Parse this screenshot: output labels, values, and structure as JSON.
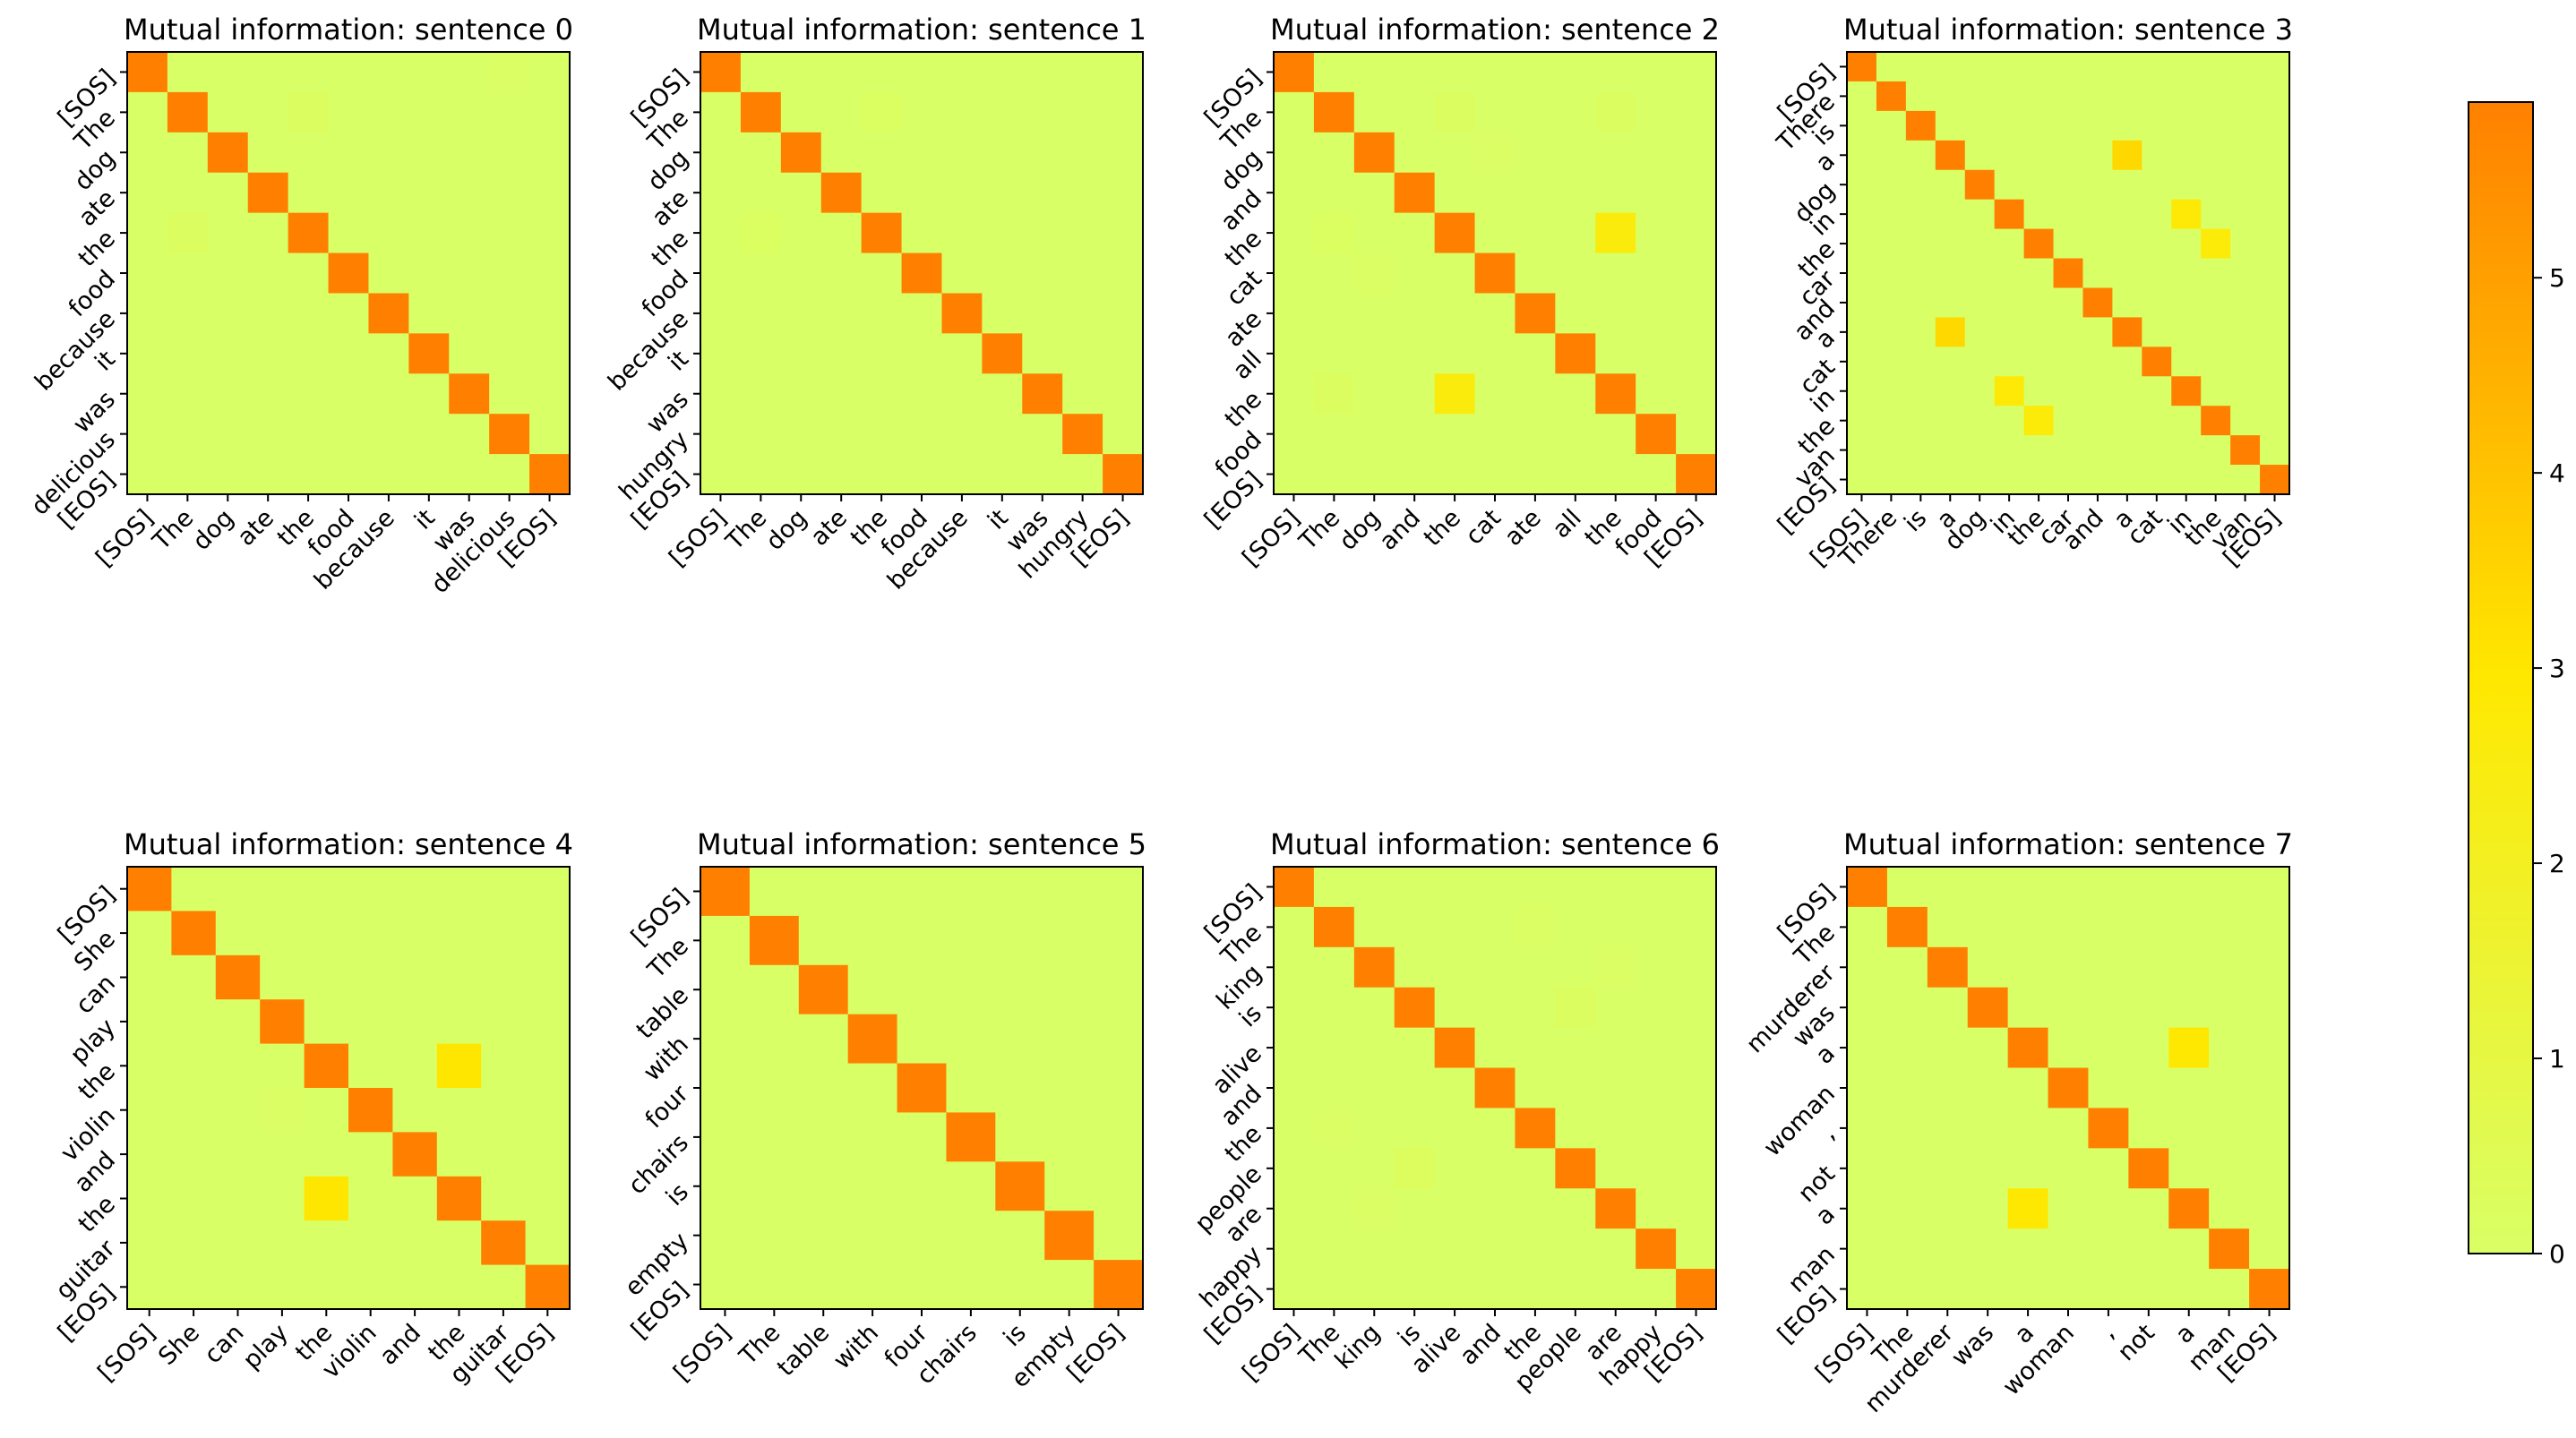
{
  "chart_data": [
    {
      "type": "heatmap",
      "title": "Mutual information: sentence 0",
      "tokens": [
        "[SOS]",
        "The",
        "dog",
        "ate",
        "the",
        "food",
        "because",
        "it",
        "was",
        "delicious",
        "[EOS]"
      ],
      "highlights": [
        [
          1,
          4,
          0.2
        ],
        [
          4,
          1,
          0.2
        ],
        [
          0,
          9,
          0.1
        ]
      ],
      "diagonal_value": 5.9,
      "background_value": 0
    },
    {
      "type": "heatmap",
      "title": "Mutual information: sentence 1",
      "tokens": [
        "[SOS]",
        "The",
        "dog",
        "ate",
        "the",
        "food",
        "because",
        "it",
        "was",
        "hungry",
        "[EOS]"
      ],
      "highlights": [
        [
          1,
          4,
          0.15
        ],
        [
          4,
          1,
          0.15
        ]
      ],
      "diagonal_value": 5.9,
      "background_value": 0
    },
    {
      "type": "heatmap",
      "title": "Mutual information: sentence 2",
      "tokens": [
        "[SOS]",
        "The",
        "dog",
        "and",
        "the",
        "cat",
        "ate",
        "all",
        "the",
        "food",
        "[EOS]"
      ],
      "highlights": [
        [
          4,
          8,
          2.6
        ],
        [
          8,
          4,
          2.6
        ],
        [
          1,
          4,
          0.2
        ],
        [
          4,
          1,
          0.15
        ],
        [
          1,
          8,
          0.2
        ],
        [
          8,
          1,
          0.2
        ],
        [
          2,
          5,
          0.1
        ],
        [
          5,
          2,
          0.1
        ]
      ],
      "diagonal_value": 5.9,
      "background_value": 0
    },
    {
      "type": "heatmap",
      "title": "Mutual information: sentence 3",
      "tokens": [
        "[SOS]",
        "There",
        "is",
        "a",
        "dog",
        "in",
        "the",
        "car",
        "and",
        "a",
        "cat",
        "in",
        "the",
        "van",
        "[EOS]"
      ],
      "highlights": [
        [
          3,
          9,
          3.4
        ],
        [
          9,
          3,
          3.4
        ],
        [
          5,
          11,
          2.8
        ],
        [
          11,
          5,
          2.8
        ],
        [
          6,
          12,
          2.7
        ],
        [
          12,
          6,
          2.7
        ]
      ],
      "diagonal_value": 5.9,
      "background_value": 0
    },
    {
      "type": "heatmap",
      "title": "Mutual information: sentence 4",
      "tokens": [
        "[SOS]",
        "She",
        "can",
        "play",
        "the",
        "violin",
        "and",
        "the",
        "guitar",
        "[EOS]"
      ],
      "highlights": [
        [
          4,
          7,
          3.0
        ],
        [
          7,
          4,
          3.0
        ],
        [
          5,
          3,
          0.1
        ]
      ],
      "diagonal_value": 5.9,
      "background_value": 0
    },
    {
      "type": "heatmap",
      "title": "Mutual information: sentence 5",
      "tokens": [
        "[SOS]",
        "The",
        "table",
        "with",
        "four",
        "chairs",
        "is",
        "empty",
        "[EOS]"
      ],
      "highlights": [],
      "diagonal_value": 5.9,
      "background_value": 0
    },
    {
      "type": "heatmap",
      "title": "Mutual information: sentence 6",
      "tokens": [
        "[SOS]",
        "The",
        "king",
        "is",
        "alive",
        "and",
        "the",
        "people",
        "are",
        "happy",
        "[EOS]"
      ],
      "highlights": [
        [
          7,
          3,
          0.25
        ],
        [
          3,
          7,
          0.2
        ],
        [
          1,
          6,
          0.1
        ],
        [
          6,
          1,
          0.1
        ],
        [
          2,
          8,
          0.1
        ],
        [
          8,
          2,
          0.1
        ]
      ],
      "diagonal_value": 5.9,
      "background_value": 0
    },
    {
      "type": "heatmap",
      "title": "Mutual information: sentence 7",
      "tokens": [
        "[SOS]",
        "The",
        "murderer",
        "was",
        "a",
        "woman",
        ",",
        "not",
        "a",
        "man",
        "[EOS]"
      ],
      "highlights": [
        [
          4,
          8,
          2.9
        ],
        [
          8,
          4,
          2.9
        ]
      ],
      "diagonal_value": 5.9,
      "background_value": 0
    }
  ],
  "colorbar": {
    "ticks": [
      0,
      1,
      2,
      3,
      4,
      5
    ],
    "vmin": 0,
    "vmax": 5.9,
    "colormap": [
      "#d9ff66",
      "#ffe800",
      "#ff8000"
    ]
  }
}
